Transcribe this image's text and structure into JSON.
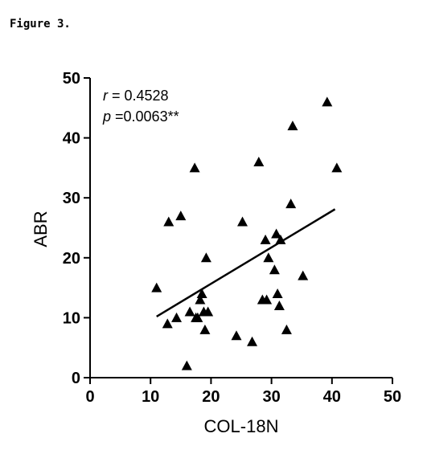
{
  "figure_label": "Figure 3.",
  "chart_data": {
    "type": "scatter",
    "xlabel": "COL-18N",
    "ylabel": "ABR",
    "xlim": [
      0,
      50
    ],
    "ylim": [
      0,
      50
    ],
    "xticks": [
      0,
      10,
      20,
      30,
      40,
      50
    ],
    "yticks": [
      0,
      10,
      20,
      30,
      40,
      50
    ],
    "grid": false,
    "marker": "triangle",
    "color": "#000000",
    "annotations": {
      "r_symbol": "r",
      "r_value": " = 0.4528",
      "p_symbol": "p",
      "p_value": " =0.0063**"
    },
    "trendline": {
      "x": [
        11,
        40.5
      ],
      "y": [
        10.2,
        28.1
      ]
    },
    "x": [
      11.0,
      12.8,
      13.0,
      14.3,
      15.0,
      16.0,
      16.5,
      17.5,
      17.3,
      17.8,
      18.2,
      18.5,
      18.8,
      19.0,
      19.2,
      19.5,
      24.2,
      25.2,
      26.8,
      27.9,
      28.5,
      29.0,
      29.2,
      29.5,
      30.5,
      30.8,
      31.0,
      31.3,
      31.5,
      32.5,
      33.2,
      33.5,
      35.2,
      39.2,
      40.8
    ],
    "y": [
      15.0,
      9.0,
      26.0,
      10.0,
      27.0,
      2.0,
      11.0,
      10.0,
      35.0,
      10.0,
      13.0,
      14.0,
      11.0,
      8.0,
      20.0,
      11.0,
      7.0,
      26.0,
      6.0,
      36.0,
      13.0,
      23.0,
      13.0,
      20.0,
      18.0,
      24.0,
      14.0,
      12.0,
      23.0,
      8.0,
      29.0,
      42.0,
      17.0,
      46.0,
      35.0
    ]
  }
}
